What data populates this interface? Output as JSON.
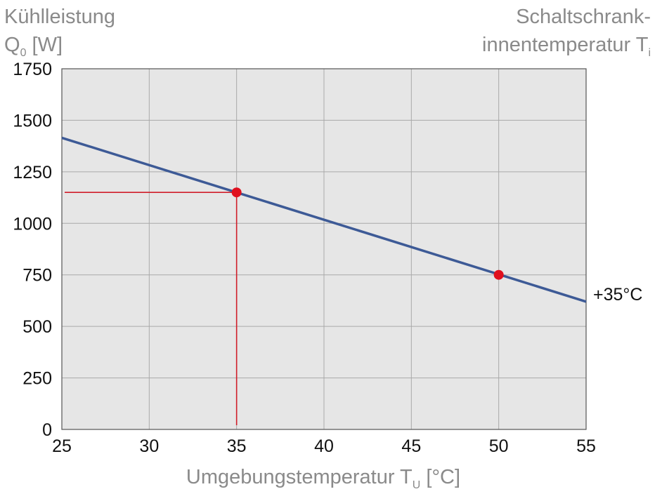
{
  "labels": {
    "y_line1": "Kühlleistung",
    "y_q": "Q",
    "y_sub": "0",
    "y_unit": " [W]",
    "right_line1": "Schaltschrank-",
    "right_line2": "innentemperatur T",
    "right_sub": "i",
    "x_main": "Umgebungstemperatur T",
    "x_sub": "U",
    "x_unit": " [°C]"
  },
  "colors": {
    "plot_bg": "#e6e6e6",
    "grid": "#a9a9a9",
    "series": "#3d5a96",
    "marker": "#e0101e",
    "guide": "#d01e2a"
  },
  "chart_data": {
    "type": "line",
    "xlim": [
      25,
      55
    ],
    "ylim": [
      0,
      1750
    ],
    "x_ticks": [
      "25",
      "30",
      "35",
      "40",
      "45",
      "50",
      "55"
    ],
    "y_ticks": [
      "0",
      "250",
      "500",
      "750",
      "1000",
      "1250",
      "1500",
      "1750"
    ],
    "grid": true,
    "series": [
      {
        "name": "+35°C",
        "x": [
          25,
          55
        ],
        "y": [
          1415,
          620
        ]
      }
    ],
    "markers": [
      {
        "x": 35,
        "y": 1150
      },
      {
        "x": 50,
        "y": 750
      }
    ],
    "guide_point": {
      "x": 35,
      "y": 1150
    }
  }
}
